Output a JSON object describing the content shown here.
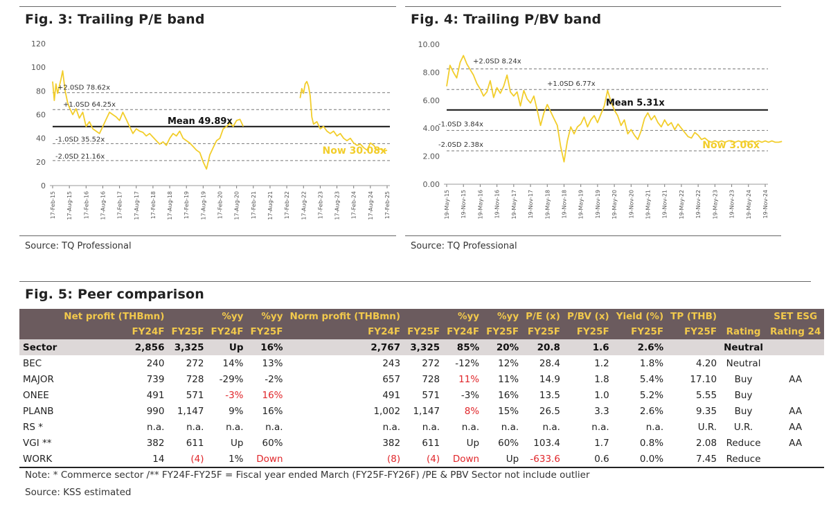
{
  "figures": {
    "fig3": {
      "title": "Fig. 3: Trailing P/E band",
      "source": "Source: TQ Professional"
    },
    "fig4": {
      "title": "Fig. 4: Trailing P/BV band",
      "source": "Source: TQ Professional"
    },
    "fig5": {
      "title": "Fig. 5: Peer comparison",
      "note": "Note: * Commerce sector /** FY24F-FY25F = Fiscal year ended March (FY25F-FY26F) /PE & PBV Sector not include outlier",
      "source": "Source: KSS estimated"
    }
  },
  "colors": {
    "line": "#f2cd2a",
    "header_bg": "#6b5b5e",
    "header_text": "#f2c94c",
    "sector_bg": "#ddd8d8",
    "negative": "#e0262a"
  },
  "chart_data": [
    {
      "type": "line",
      "title": "Fig. 3: Trailing P/E band",
      "xlabel": "",
      "ylabel": "",
      "ylim": [
        0,
        120
      ],
      "yticks": [
        "120",
        "100",
        "80",
        "60",
        "40",
        "20",
        "0"
      ],
      "x_ticks": [
        "17-Feb-15",
        "17-Aug-15",
        "17-Feb-16",
        "17-Aug-16",
        "17-Feb-17",
        "17-Aug-17",
        "17-Feb-18",
        "17-Aug-18",
        "17-Feb-19",
        "17-Aug-19",
        "17-Feb-20",
        "17-Aug-20",
        "17-Feb-21",
        "17-Aug-21",
        "17-Feb-22",
        "17-Aug-22",
        "17-Feb-23",
        "17-Aug-23",
        "17-Feb-24",
        "17-Aug-24",
        "17-Feb-25"
      ],
      "bands": [
        {
          "label": "+2.0SD 78.62x",
          "value": 78.62,
          "style": "dashed"
        },
        {
          "label": "+1.0SD 64.25x",
          "value": 64.25,
          "style": "dashed"
        },
        {
          "label": "Mean 49.89x",
          "value": 49.89,
          "style": "solid"
        },
        {
          "label": "-1.0SD 35.52x",
          "value": 35.52,
          "style": "dashed"
        },
        {
          "label": "-2.0SD 21.16x",
          "value": 21.16,
          "style": "dashed"
        }
      ],
      "now_label": "Now 30.08x",
      "series": [
        {
          "name": "Trailing P/E",
          "segments": [
            {
              "x": [
                0.0,
                0.1,
                0.2,
                0.3,
                0.4,
                0.5,
                0.6,
                0.75,
                0.9,
                1.0,
                1.2,
                1.4,
                1.6,
                1.8,
                2.0,
                2.2,
                2.4,
                2.6,
                2.8,
                3.0,
                3.2,
                3.4,
                3.6,
                3.8,
                4.0,
                4.2,
                4.4,
                4.6,
                4.8,
                5.0,
                5.2,
                5.4,
                5.6,
                5.8,
                6.0,
                6.2,
                6.4,
                6.6,
                6.8,
                7.0,
                7.2,
                7.4,
                7.6,
                7.8,
                8.0,
                8.2,
                8.4,
                8.6,
                8.8,
                9.0,
                9.2,
                9.4,
                9.6,
                9.8,
                10.0,
                10.2,
                10.4,
                10.6,
                10.8,
                11.0,
                11.2,
                11.4
              ],
              "y": [
                88,
                72,
                86,
                78,
                84,
                90,
                97,
                80,
                70,
                66,
                60,
                65,
                57,
                62,
                50,
                54,
                48,
                46,
                44,
                50,
                56,
                62,
                60,
                58,
                55,
                62,
                56,
                50,
                44,
                48,
                46,
                45,
                42,
                44,
                41,
                38,
                35,
                37,
                34,
                40,
                44,
                42,
                46,
                40,
                38,
                36,
                33,
                30,
                28,
                20,
                14,
                26,
                32,
                38,
                40,
                48,
                50,
                53,
                50,
                55,
                56,
                50
              ]
            },
            {
              "x": [
                14.8,
                14.9,
                15.0,
                15.1,
                15.2,
                15.3,
                15.4,
                15.5,
                15.6,
                15.8,
                16.0,
                16.2,
                16.4,
                16.6,
                16.8,
                17.0,
                17.2,
                17.4,
                17.6,
                17.8,
                18.0,
                18.2,
                18.4,
                18.6,
                18.8,
                19.0,
                19.2,
                19.4,
                19.6,
                19.8,
                20.0
              ],
              "y": [
                74,
                82,
                78,
                86,
                88,
                84,
                76,
                58,
                52,
                54,
                48,
                50,
                46,
                44,
                46,
                42,
                44,
                40,
                38,
                40,
                36,
                34,
                35,
                32,
                30,
                36,
                34,
                30,
                31,
                29,
                30
              ]
            }
          ]
        }
      ]
    },
    {
      "type": "line",
      "title": "Fig. 4: Trailing P/BV band",
      "xlabel": "",
      "ylabel": "",
      "ylim": [
        0,
        10
      ],
      "yticks": [
        "10.00",
        "8.00",
        "6.00",
        "4.00",
        "2.00",
        "0.00"
      ],
      "x_ticks": [
        "19-May-15",
        "19-Nov-15",
        "19-May-16",
        "19-Nov-16",
        "19-May-17",
        "19-Nov-17",
        "19-May-18",
        "19-Nov-18",
        "19-May-19",
        "19-Nov-19",
        "19-May-20",
        "19-Nov-20",
        "19-May-21",
        "19-Nov-21",
        "19-May-22",
        "19-Nov-22",
        "19-May-23",
        "19-Nov-23",
        "19-May-24",
        "19-Nov-24"
      ],
      "bands": [
        {
          "label": "+2.0SD 8.24x",
          "value": 8.24,
          "style": "dashed"
        },
        {
          "label": "+1.0SD 6.77x",
          "value": 6.77,
          "style": "dashed"
        },
        {
          "label": "Mean 5.31x",
          "value": 5.31,
          "style": "solid"
        },
        {
          "label": "-1.0SD 3.84x",
          "value": 3.84,
          "style": "dashed"
        },
        {
          "label": "-2.0SD 2.38x",
          "value": 2.38,
          "style": "dashed"
        }
      ],
      "now_label": "Now 3.06x",
      "series": [
        {
          "name": "Trailing P/BV",
          "segments": [
            {
              "x": [
                0.0,
                0.2,
                0.4,
                0.6,
                0.8,
                1.0,
                1.2,
                1.4,
                1.6,
                1.8,
                2.0,
                2.2,
                2.4,
                2.6,
                2.8,
                3.0,
                3.2,
                3.4,
                3.6,
                3.8,
                4.0,
                4.2,
                4.4,
                4.6,
                4.8,
                5.0,
                5.2,
                5.4,
                5.6,
                5.8,
                6.0,
                6.2,
                6.4,
                6.6,
                6.8,
                7.0,
                7.2,
                7.4,
                7.6,
                7.8,
                8.0,
                8.2,
                8.4,
                8.6,
                8.8,
                9.0,
                9.2,
                9.4,
                9.6,
                9.8,
                10.0,
                10.2,
                10.4,
                10.6,
                10.8,
                11.0,
                11.2,
                11.4,
                11.6,
                11.8,
                12.0,
                12.2,
                12.4,
                12.6,
                12.8,
                13.0,
                13.2,
                13.4,
                13.6,
                13.8,
                14.0,
                14.2,
                14.4,
                14.6,
                14.8,
                15.0,
                15.2,
                15.4,
                15.6,
                15.8,
                16.0,
                16.2,
                16.4,
                16.6,
                16.8,
                17.0,
                17.2,
                17.4,
                17.6,
                17.8,
                18.0,
                18.2,
                18.4,
                18.6,
                18.8,
                19.0,
                19.2,
                19.4,
                19.6,
                19.8,
                20.0
              ],
              "y": [
                7.0,
                8.5,
                8.0,
                7.6,
                8.7,
                9.2,
                8.6,
                8.2,
                7.8,
                7.2,
                6.8,
                6.3,
                6.6,
                7.4,
                6.2,
                6.9,
                6.5,
                7.0,
                7.8,
                6.6,
                6.3,
                6.6,
                5.6,
                6.7,
                6.1,
                5.8,
                6.3,
                5.3,
                4.2,
                5.1,
                5.7,
                5.2,
                4.7,
                4.2,
                2.7,
                1.6,
                3.1,
                4.1,
                3.6,
                4.1,
                4.3,
                4.8,
                4.1,
                4.6,
                4.9,
                4.4,
                5.0,
                5.6,
                6.7,
                5.9,
                5.3,
                4.9,
                4.2,
                4.6,
                3.6,
                3.9,
                3.5,
                3.2,
                3.8,
                4.7,
                5.1,
                4.6,
                4.9,
                4.4,
                4.1,
                4.6,
                4.2,
                4.4,
                3.9,
                4.3,
                4.0,
                3.7,
                3.4,
                3.3,
                3.7,
                3.5,
                3.2,
                3.3,
                3.1,
                3.0,
                3.1,
                3.0,
                3.1,
                3.0,
                3.1,
                3.1,
                3.0,
                3.1,
                3.0,
                3.1,
                3.0,
                3.1,
                3.0,
                3.1,
                3.0,
                3.1,
                3.0,
                3.1,
                3.0,
                3.0,
                3.06
              ]
            }
          ]
        }
      ]
    },
    {
      "type": "table",
      "title": "Fig. 5: Peer comparison",
      "header_groups": [
        "",
        "Net profit (THBmn)",
        "",
        "%yy",
        "%yy",
        "Norm profit (THBmn)",
        "",
        "%yy",
        "%yy",
        "P/E (x)",
        "P/BV (x)",
        "Yield (%)",
        "TP (THB)",
        "",
        "SET ESG"
      ],
      "columns": [
        "",
        "FY24F",
        "FY25F",
        "FY24F",
        "FY25F",
        "FY24F",
        "FY25F",
        "FY24F",
        "FY25F",
        "FY25F",
        "FY25F",
        "FY25F",
        "FY25F",
        "Rating",
        "Rating 24"
      ],
      "sector_row": [
        "Sector",
        "2,856",
        "3,325",
        "Up",
        "16%",
        "2,767",
        "3,325",
        "85%",
        "20%",
        "20.8",
        "1.6",
        "2.6%",
        "",
        "Neutral",
        ""
      ],
      "rows": [
        [
          "BEC",
          "240",
          "272",
          "14%",
          "13%",
          "243",
          "272",
          "-12%",
          "12%",
          "28.4",
          "1.2",
          "1.8%",
          "4.20",
          "Neutral",
          ""
        ],
        [
          "MAJOR",
          "739",
          "728",
          "-29%",
          "-2%",
          "657",
          "728",
          "11%",
          "11%",
          "14.9",
          "1.8",
          "5.4%",
          "17.10",
          "Buy",
          "AA"
        ],
        [
          "ONEE",
          "491",
          "571",
          "-3%",
          "16%",
          "491",
          "571",
          "-3%",
          "16%",
          "13.5",
          "1.0",
          "5.2%",
          "5.55",
          "Buy",
          ""
        ],
        [
          "PLANB",
          "990",
          "1,147",
          "9%",
          "16%",
          "1,002",
          "1,147",
          "8%",
          "15%",
          "26.5",
          "3.3",
          "2.6%",
          "9.35",
          "Buy",
          "AA"
        ],
        [
          "RS *",
          "n.a.",
          "n.a.",
          "n.a.",
          "n.a.",
          "n.a.",
          "n.a.",
          "n.a.",
          "n.a.",
          "n.a.",
          "n.a.",
          "n.a.",
          "U.R.",
          "U.R.",
          "AA"
        ],
        [
          "VGI **",
          "382",
          "611",
          "Up",
          "60%",
          "382",
          "611",
          "Up",
          "60%",
          "103.4",
          "1.7",
          "0.8%",
          "2.08",
          "Reduce",
          "AA"
        ],
        [
          "WORK",
          "14",
          "(4)",
          "1%",
          "Down",
          "(8)",
          "(4)",
          "Down",
          "Up",
          "-633.6",
          "0.6",
          "0.0%",
          "7.45",
          "Reduce",
          ""
        ]
      ],
      "negative_cells": [
        "1.7",
        "2.3",
        "2.4",
        "3.7",
        "6.2",
        "6.4",
        "6.5",
        "6.6",
        "6.7",
        "6.9"
      ]
    }
  ]
}
